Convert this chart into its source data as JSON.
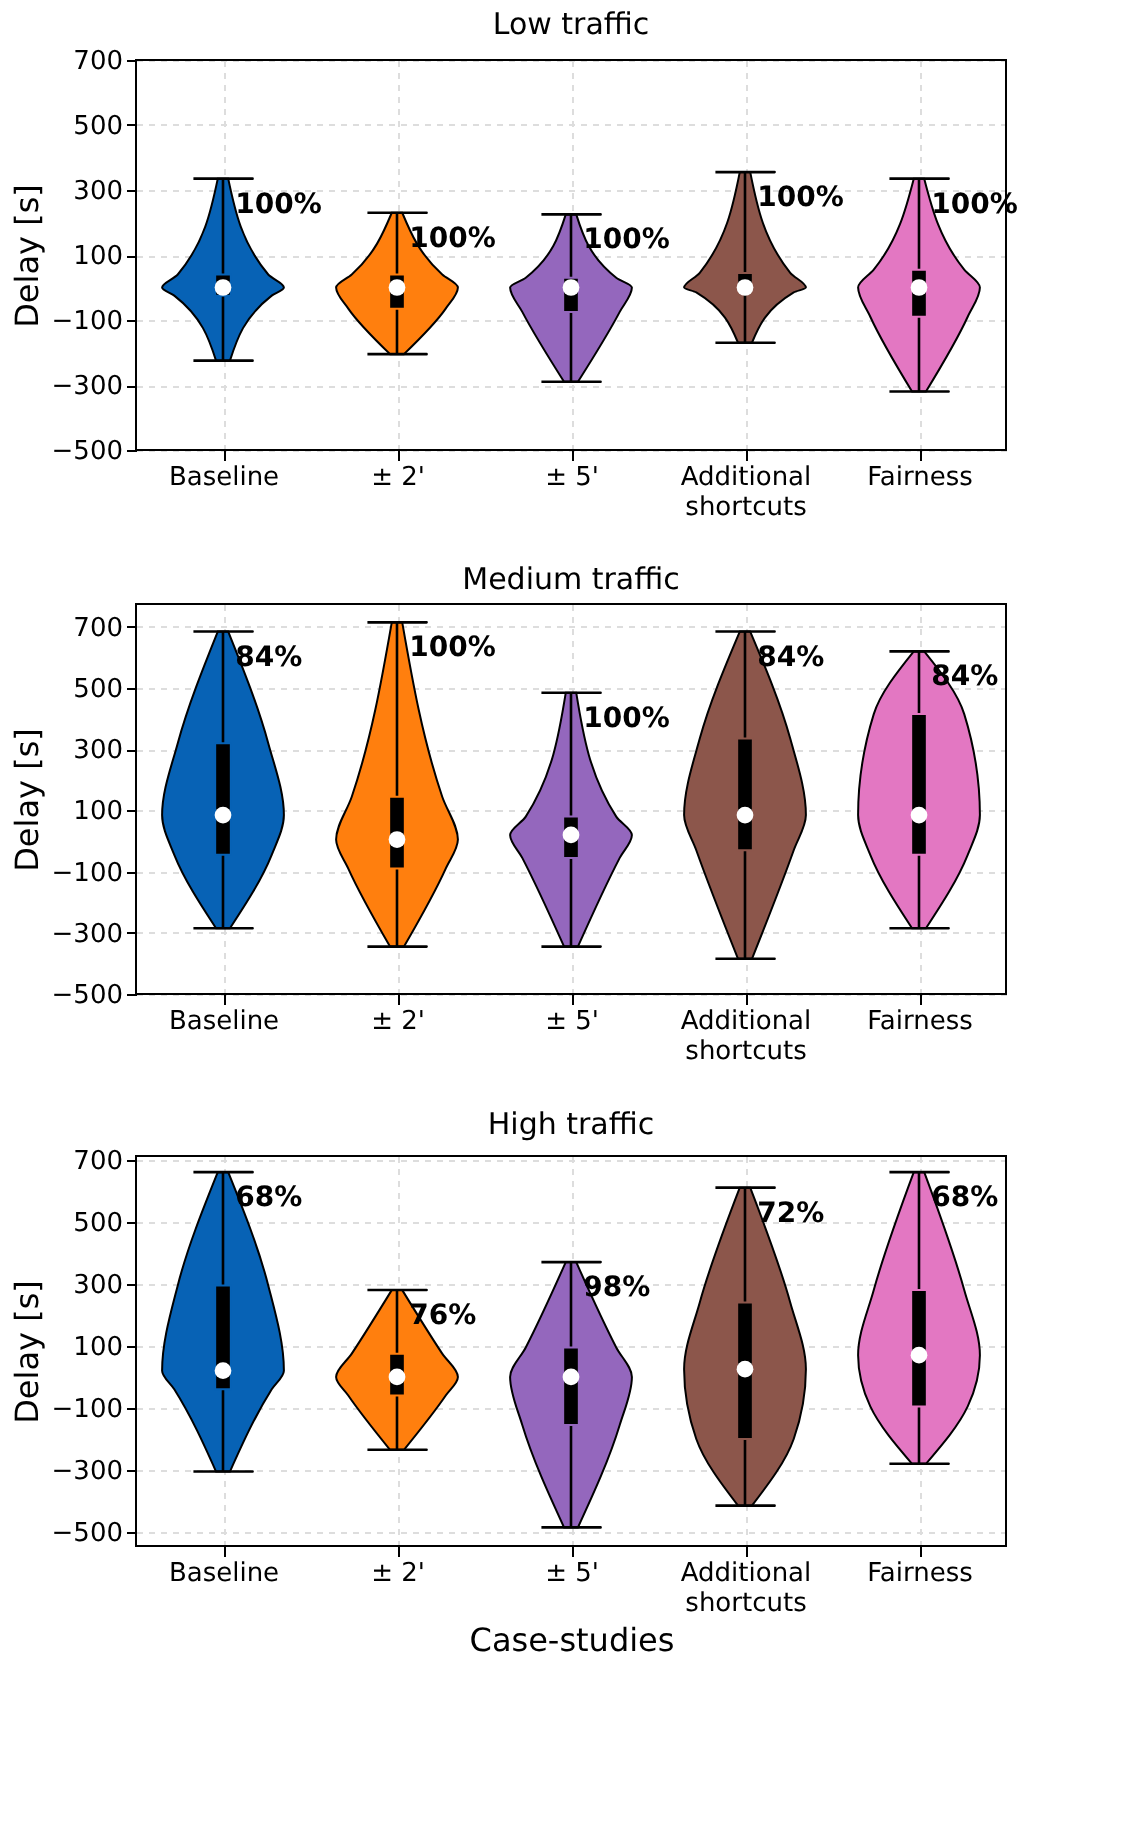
{
  "chart_data": [
    {
      "type": "box",
      "title": "Low traffic",
      "ylabel": "Delay [s]",
      "categories": [
        "Baseline",
        "± 2'",
        "± 5'",
        "Additional shortcuts",
        "Fairness"
      ],
      "colors": [
        "#0762b5",
        "#ff7f0e",
        "#9467bd",
        "#8c564b",
        "#e377c2"
      ],
      "ylim": [
        -500,
        700
      ],
      "yticks": [
        -500,
        -300,
        -100,
        100,
        300,
        500,
        700
      ],
      "grid": true,
      "boxes": [
        {
          "low": -225,
          "q1": -25,
          "median": 0,
          "q3": 40,
          "high": 335
        },
        {
          "low": -205,
          "q1": -65,
          "median": 0,
          "q3": 40,
          "high": 230
        },
        {
          "low": -290,
          "q1": -75,
          "median": 0,
          "q3": 30,
          "high": 225
        },
        {
          "low": -170,
          "q1": -15,
          "median": 0,
          "q3": 45,
          "high": 355
        },
        {
          "low": -320,
          "q1": -90,
          "median": 0,
          "q3": 55,
          "high": 335
        }
      ],
      "annotations": [
        "100%",
        "100%",
        "100%",
        "100%",
        "100%"
      ]
    },
    {
      "type": "box",
      "title": "Medium traffic",
      "ylabel": "Delay [s]",
      "categories": [
        "Baseline",
        "± 2'",
        "± 5'",
        "Additional shortcuts",
        "Fairness"
      ],
      "colors": [
        "#0762b5",
        "#ff7f0e",
        "#9467bd",
        "#8c564b",
        "#e377c2"
      ],
      "ylim": [
        -500,
        775
      ],
      "yticks": [
        -500,
        -300,
        -100,
        100,
        300,
        500,
        700
      ],
      "grid": true,
      "boxes": [
        {
          "low": -285,
          "q1": -45,
          "median": 85,
          "q3": 320,
          "high": 685
        },
        {
          "low": -345,
          "q1": -90,
          "median": 5,
          "q3": 145,
          "high": 715
        },
        {
          "low": -345,
          "q1": -55,
          "median": 20,
          "q3": 80,
          "high": 485
        },
        {
          "low": -385,
          "q1": -30,
          "median": 85,
          "q3": 335,
          "high": 685
        },
        {
          "low": -285,
          "q1": -45,
          "median": 85,
          "q3": 415,
          "high": 620
        }
      ],
      "annotations": [
        "84%",
        "100%",
        "100%",
        "84%",
        "84%"
      ]
    },
    {
      "type": "box",
      "title": "High traffic",
      "ylabel": "Delay [s]",
      "xlabel": "Case-studies",
      "categories": [
        "Baseline",
        "± 2'",
        "± 5'",
        "Additional shortcuts",
        "Fairness"
      ],
      "colors": [
        "#0762b5",
        "#ff7f0e",
        "#9467bd",
        "#8c564b",
        "#e377c2"
      ],
      "ylim": [
        -545,
        712
      ],
      "yticks": [
        -500,
        -300,
        -100,
        100,
        300,
        500,
        700
      ],
      "grid": true,
      "boxes": [
        {
          "low": -305,
          "q1": -40,
          "median": 20,
          "q3": 295,
          "high": 660
        },
        {
          "low": -235,
          "q1": -60,
          "median": 0,
          "q3": 75,
          "high": 280
        },
        {
          "low": -485,
          "q1": -155,
          "median": 0,
          "q3": 95,
          "high": 370
        },
        {
          "low": -415,
          "q1": -200,
          "median": 25,
          "q3": 240,
          "high": 610
        },
        {
          "low": -280,
          "q1": -95,
          "median": 70,
          "q3": 280,
          "high": 660
        }
      ],
      "annotations": [
        "68%",
        "76%",
        "98%",
        "72%",
        "68%"
      ]
    }
  ]
}
